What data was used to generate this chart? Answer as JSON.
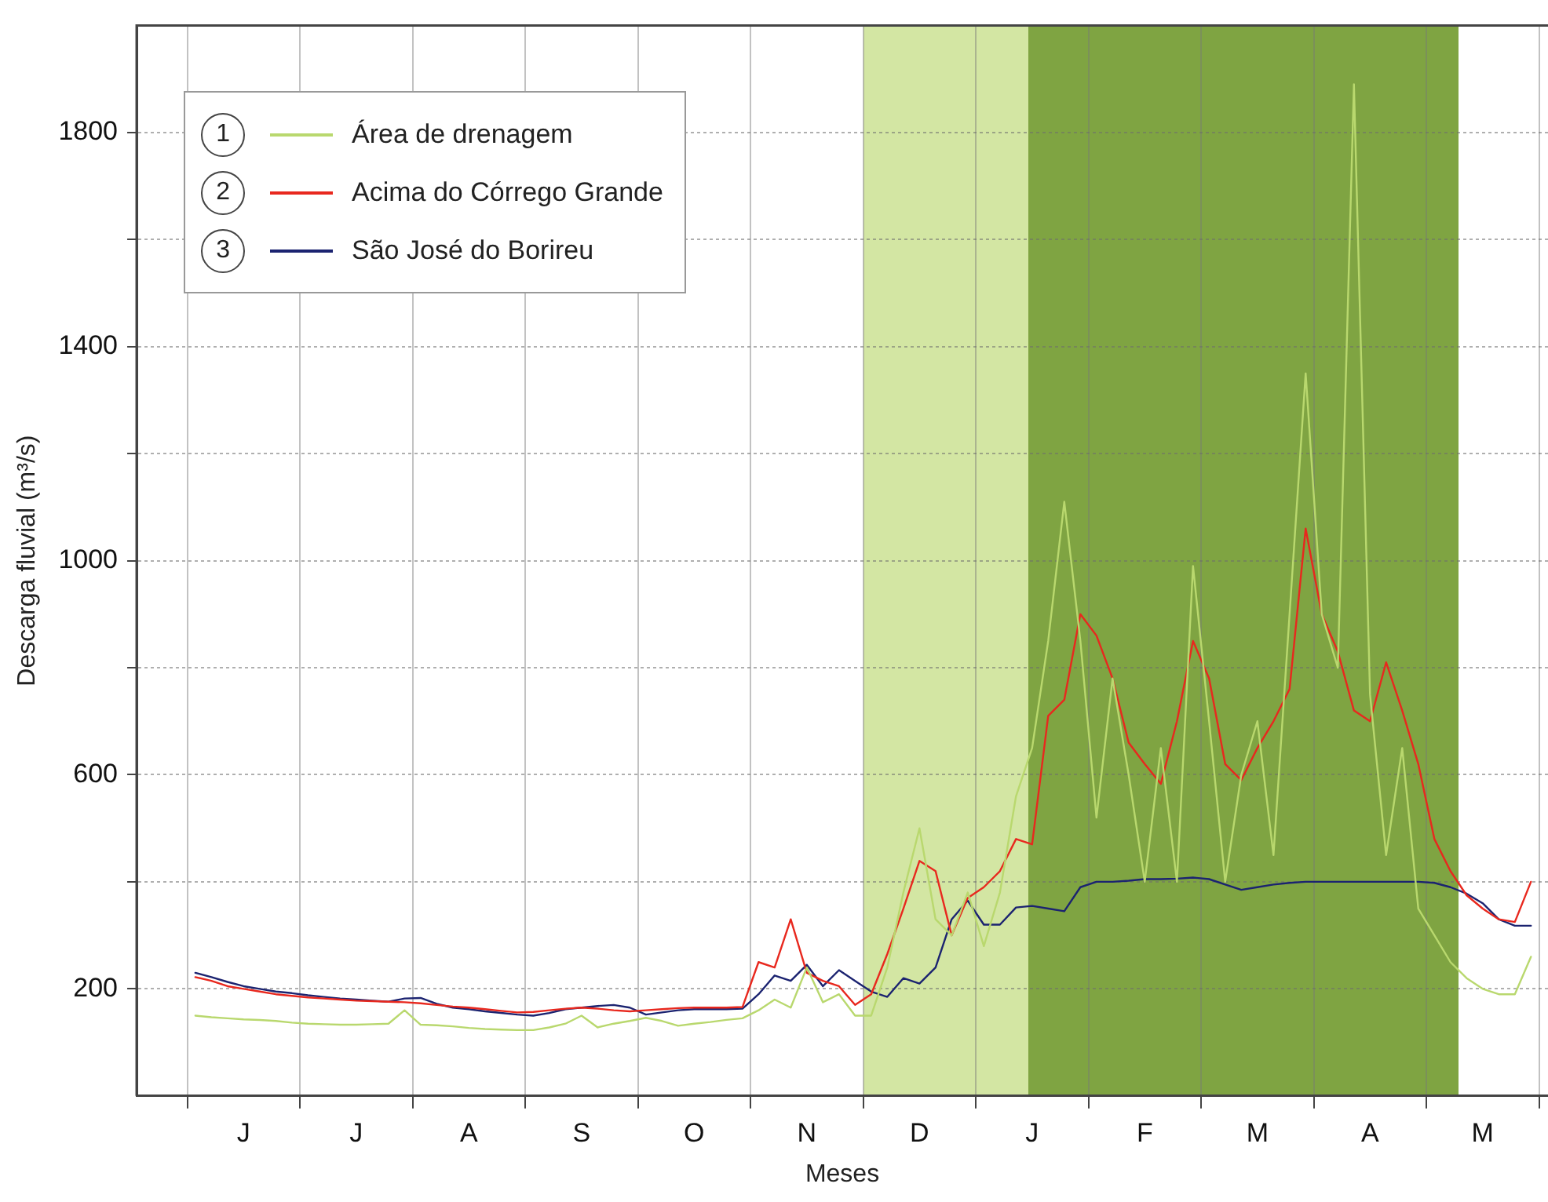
{
  "chart_data": {
    "type": "line",
    "xlabel": "Meses",
    "ylabel": "Descarga fluvial (m³/s)",
    "categories": [
      null,
      null,
      null,
      "J",
      null,
      null,
      null,
      null,
      null,
      null,
      "J",
      null,
      null,
      null,
      null,
      null,
      null,
      "A",
      null,
      null,
      null,
      null,
      null,
      null,
      "S",
      null,
      null,
      null,
      null,
      null,
      null,
      "O",
      null,
      null,
      null,
      null,
      null,
      null,
      "N",
      null,
      null,
      null,
      null,
      null,
      null,
      "D",
      null,
      null,
      null,
      null,
      null,
      null,
      "J",
      null,
      null,
      null,
      null,
      null,
      null,
      "F",
      null,
      null,
      null,
      null,
      null,
      null,
      "M",
      null,
      null,
      null,
      null,
      null,
      null,
      "A",
      null,
      null,
      null,
      null,
      null,
      null,
      "M",
      null,
      null,
      null
    ],
    "ylim": [
      0,
      2000
    ],
    "yticks": [
      200,
      {
        "value": 400,
        "label": null
      },
      600,
      {
        "value": 800,
        "label": null
      },
      1000,
      {
        "value": 1200,
        "label": null
      },
      1400,
      {
        "value": 1600,
        "label": null
      },
      1800
    ],
    "grid": true,
    "legend": "top left",
    "marker": "none",
    "line_style": "solid",
    "annotations": [
      "1",
      "2",
      "3"
    ],
    "series": [
      {
        "name": "Área de drenagem",
        "color": "#b9d86e",
        "values": [
          150,
          147,
          145,
          143,
          142,
          140,
          137,
          135,
          134,
          133,
          133,
          134,
          135,
          160,
          133,
          132,
          130,
          127,
          125,
          124,
          123,
          123,
          128,
          135,
          150,
          128,
          135,
          140,
          146,
          140,
          131,
          135,
          138,
          142,
          145,
          160,
          180,
          165,
          240,
          175,
          190,
          150,
          150,
          240,
          380,
          500,
          330,
          300,
          380,
          280,
          380,
          560,
          650,
          850,
          1110,
          850,
          520,
          780,
          600,
          400,
          650,
          400,
          990,
          700,
          400,
          600,
          700,
          450,
          900,
          1350,
          900,
          800,
          1890,
          750,
          450,
          650,
          350,
          300,
          250,
          220,
          200,
          190,
          190,
          260
        ]
      },
      {
        "name": "Acima do Córrego Grande",
        "color": "#e8281e",
        "values": [
          222,
          215,
          205,
          200,
          195,
          190,
          187,
          184,
          182,
          180,
          178,
          177,
          176,
          175,
          173,
          170,
          167,
          165,
          162,
          159,
          156,
          157,
          160,
          163,
          165,
          163,
          160,
          158,
          160,
          162,
          164,
          165,
          165,
          165,
          166,
          250,
          240,
          330,
          230,
          215,
          205,
          170,
          190,
          265,
          350,
          439,
          420,
          300,
          370,
          390,
          420,
          480,
          470,
          710,
          740,
          900,
          860,
          780,
          660,
          620,
          583,
          700,
          850,
          780,
          620,
          590,
          650,
          700,
          760,
          1060,
          900,
          830,
          720,
          700,
          810,
          720,
          620,
          480,
          420,
          375,
          350,
          330,
          325,
          400
        ]
      },
      {
        "name": "São José do Borireu",
        "color": "#1b2370",
        "values": [
          230,
          222,
          213,
          205,
          200,
          195,
          192,
          188,
          185,
          182,
          180,
          178,
          176,
          182,
          183,
          172,
          165,
          162,
          158,
          155,
          152,
          150,
          155,
          162,
          165,
          168,
          170,
          165,
          152,
          156,
          160,
          162,
          162,
          162,
          163,
          190,
          225,
          215,
          245,
          205,
          235,
          215,
          195,
          185,
          220,
          210,
          240,
          330,
          365,
          320,
          320,
          352,
          355,
          350,
          345,
          390,
          400,
          400,
          402,
          405,
          405,
          406,
          408,
          405,
          395,
          385,
          390,
          395,
          398,
          400,
          400,
          400,
          400,
          400,
          400,
          400,
          400,
          398,
          390,
          378,
          360,
          330,
          318,
          318
        ]
      }
    ]
  }
}
